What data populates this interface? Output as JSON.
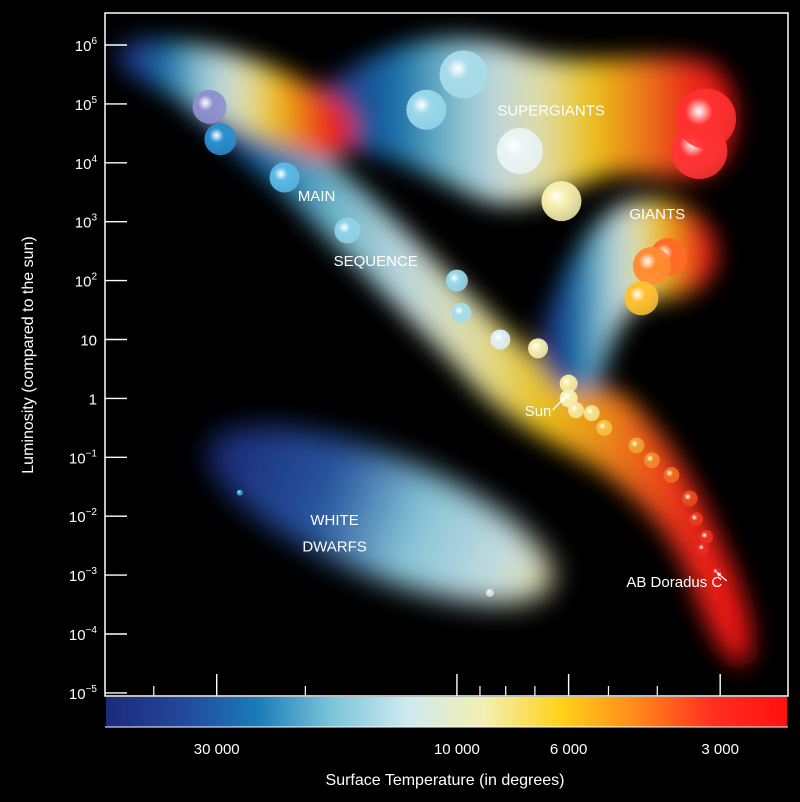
{
  "chart_data": {
    "type": "scatter",
    "title": "",
    "xlabel": "Surface Temperature (in degrees)",
    "ylabel": "Luminosity (compared to the sun)",
    "x_scale": "log",
    "x_direction": "decreasing",
    "xlim": [
      50000,
      2200
    ],
    "ylim": [
      -5,
      6.5
    ],
    "x_ticks": [
      {
        "value": 30000,
        "label": "30 000"
      },
      {
        "value": 10000,
        "label": "10 000"
      },
      {
        "value": 6000,
        "label": "6 000"
      },
      {
        "value": 3000,
        "label": "3 000"
      }
    ],
    "x_minor_ticks": [
      40000,
      20000,
      9000,
      8000,
      7000,
      5000,
      4000
    ],
    "y_ticks": [
      {
        "exp": 6,
        "base": "10",
        "sup": "6"
      },
      {
        "exp": 5,
        "base": "10",
        "sup": "5"
      },
      {
        "exp": 4,
        "base": "10",
        "sup": "4"
      },
      {
        "exp": 3,
        "base": "10",
        "sup": "3"
      },
      {
        "exp": 2,
        "base": "10",
        "sup": "2"
      },
      {
        "exp": 1,
        "base": "10",
        "sup": ""
      },
      {
        "exp": 0,
        "base": "1",
        "sup": ""
      },
      {
        "exp": -1,
        "base": "10",
        "sup": "−1"
      },
      {
        "exp": -2,
        "base": "10",
        "sup": "−2"
      },
      {
        "exp": -3,
        "base": "10",
        "sup": "−3"
      },
      {
        "exp": -4,
        "base": "10",
        "sup": "−4"
      },
      {
        "exp": -5,
        "base": "10",
        "sup": "−5"
      }
    ],
    "region_labels": [
      {
        "text": "SUPERGIANTS",
        "temp": 6500,
        "logL": 4.8,
        "color": "#ffffff"
      },
      {
        "text": "GIANTS",
        "temp": 4000,
        "logL": 3.05,
        "color": "#ffffff"
      },
      {
        "text": "MAIN",
        "temp": 19000,
        "logL": 3.35,
        "color": "#ffffff"
      },
      {
        "text": "SEQUENCE",
        "temp": 14500,
        "logL": 2.25,
        "color": "#ffffff"
      },
      {
        "text": "WHITE",
        "temp": 17500,
        "logL": -2.15,
        "color": "#ffffff"
      },
      {
        "text": "DWARFS",
        "temp": 17500,
        "logL": -2.6,
        "color": "#ffffff"
      }
    ],
    "annotations": [
      {
        "text": "Sun",
        "temp": 6900,
        "logL": -0.3,
        "arrow_to": {
          "temp": 6100,
          "logL": 0.02
        }
      },
      {
        "text": "AB Doradus C",
        "temp": 3700,
        "logL": -3.2,
        "arrow_to": {
          "temp": 3050,
          "logL": -2.95
        }
      }
    ],
    "stars": [
      {
        "temp": 31000,
        "logL": 4.95,
        "r": 17,
        "color": "#8f8fd0"
      },
      {
        "temp": 29500,
        "logL": 4.4,
        "r": 16,
        "color": "#2a8fd0"
      },
      {
        "temp": 22000,
        "logL": 3.75,
        "r": 15,
        "color": "#5cb8e6"
      },
      {
        "temp": 16500,
        "logL": 2.85,
        "r": 13,
        "color": "#8fd2e8"
      },
      {
        "temp": 10000,
        "logL": 2.0,
        "r": 11,
        "color": "#9ad8ea"
      },
      {
        "temp": 9800,
        "logL": 1.45,
        "r": 10,
        "color": "#a6dcea"
      },
      {
        "temp": 8200,
        "logL": 1.0,
        "r": 10,
        "color": "#dff0f4"
      },
      {
        "temp": 6900,
        "logL": 0.85,
        "r": 10,
        "color": "#f5eeb0"
      },
      {
        "temp": 6000,
        "logL": 0.25,
        "r": 9,
        "color": "#f5eda0"
      },
      {
        "temp": 6000,
        "logL": 0.0,
        "r": 9,
        "color": "#f7f0b0"
      },
      {
        "temp": 5800,
        "logL": -0.2,
        "r": 8,
        "color": "#f6e69a"
      },
      {
        "temp": 5400,
        "logL": -0.25,
        "r": 8,
        "color": "#f5e08a"
      },
      {
        "temp": 5100,
        "logL": -0.5,
        "r": 8,
        "color": "#f3c045"
      },
      {
        "temp": 4400,
        "logL": -0.8,
        "r": 8,
        "color": "#f0a030"
      },
      {
        "temp": 4100,
        "logL": -1.05,
        "r": 8,
        "color": "#f08a25"
      },
      {
        "temp": 3750,
        "logL": -1.3,
        "r": 8,
        "color": "#f06a20"
      },
      {
        "temp": 3450,
        "logL": -1.7,
        "r": 8,
        "color": "#e84a20"
      },
      {
        "temp": 3350,
        "logL": -2.05,
        "r": 7,
        "color": "#e83a20"
      },
      {
        "temp": 3200,
        "logL": -2.35,
        "r": 7,
        "color": "#e83020"
      },
      {
        "temp": 3250,
        "logL": -2.55,
        "r": 6,
        "color": "#e82a20"
      },
      {
        "temp": 3050,
        "logL": -2.95,
        "r": 5,
        "color": "#e82020"
      },
      {
        "temp": 11500,
        "logL": 4.9,
        "r": 20,
        "color": "#9ad8ea"
      },
      {
        "temp": 9700,
        "logL": 5.5,
        "r": 24,
        "color": "#a8dcea"
      },
      {
        "temp": 7500,
        "logL": 4.2,
        "r": 23,
        "color": "#eaf4f4"
      },
      {
        "temp": 6200,
        "logL": 3.35,
        "r": 20,
        "color": "#f8f0b0"
      },
      {
        "temp": 3300,
        "logL": 4.2,
        "r": 28,
        "color": "#ff3535"
      },
      {
        "temp": 3200,
        "logL": 4.75,
        "r": 30,
        "color": "#ff3030"
      },
      {
        "temp": 3800,
        "logL": 2.4,
        "r": 19,
        "color": "#ff6a25"
      },
      {
        "temp": 4100,
        "logL": 2.25,
        "r": 19,
        "color": "#ff8a30"
      },
      {
        "temp": 4300,
        "logL": 1.7,
        "r": 17,
        "color": "#ffc030"
      },
      {
        "temp": 27000,
        "logL": -1.6,
        "r": 3,
        "color": "#3aa0e0"
      },
      {
        "temp": 8600,
        "logL": -3.3,
        "r": 4,
        "color": "#e0e0e0"
      }
    ]
  },
  "colors": {
    "background": "#000000",
    "axis": "#ffffff",
    "colorbar_stops": [
      "#1c2a7a",
      "#23479a",
      "#1a7bb8",
      "#7cc6da",
      "#cfeaf0",
      "#f3f0b0",
      "#ffd21a",
      "#ff8a1a",
      "#ff3020",
      "#ff1010"
    ]
  }
}
